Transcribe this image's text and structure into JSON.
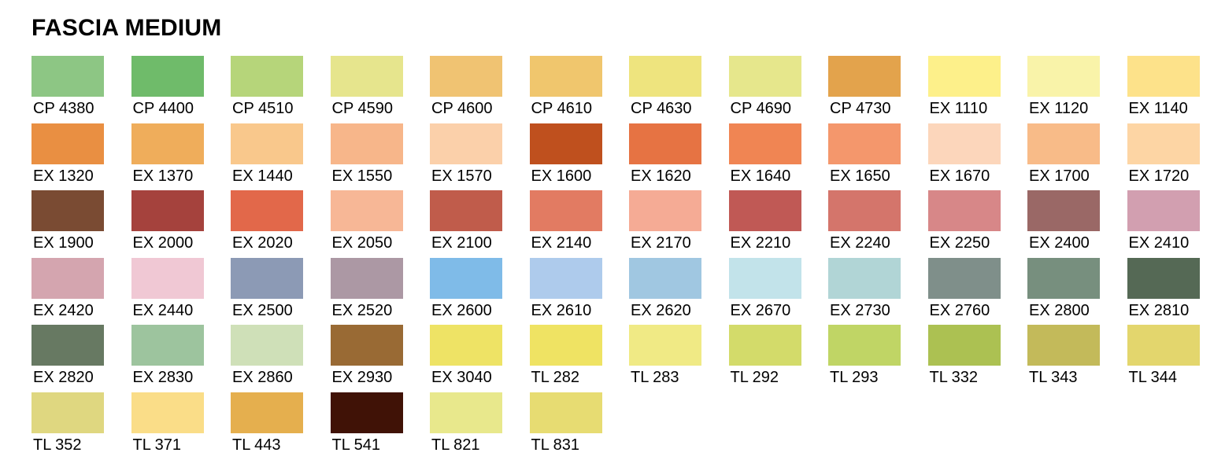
{
  "title": "FASCIA MEDIUM",
  "swatches": [
    {
      "code": "CP 4380",
      "color": "#8dc684"
    },
    {
      "code": "CP 4400",
      "color": "#6fbb6a"
    },
    {
      "code": "CP 4510",
      "color": "#b6d57a"
    },
    {
      "code": "CP 4590",
      "color": "#e6e58d"
    },
    {
      "code": "CP 4600",
      "color": "#f0c372"
    },
    {
      "code": "CP 4610",
      "color": "#f0c66d"
    },
    {
      "code": "CP 4630",
      "color": "#eee47e"
    },
    {
      "code": "CP 4690",
      "color": "#e6e78c"
    },
    {
      "code": "CP 4730",
      "color": "#e3a34c"
    },
    {
      "code": "EX 1110",
      "color": "#fdf08a"
    },
    {
      "code": "EX 1120",
      "color": "#f9f3a9"
    },
    {
      "code": "EX 1140",
      "color": "#fde28a"
    },
    {
      "code": "EX 1320",
      "color": "#e98f42"
    },
    {
      "code": "EX 1370",
      "color": "#efad5b"
    },
    {
      "code": "EX 1440",
      "color": "#f9c88c"
    },
    {
      "code": "EX 1550",
      "color": "#f7b68a"
    },
    {
      "code": "EX 1570",
      "color": "#fbd0aa"
    },
    {
      "code": "EX 1600",
      "color": "#bf501e"
    },
    {
      "code": "EX 1620",
      "color": "#e67343"
    },
    {
      "code": "EX 1640",
      "color": "#f08553"
    },
    {
      "code": "EX 1650",
      "color": "#f4976c"
    },
    {
      "code": "EX 1670",
      "color": "#fcd6bb"
    },
    {
      "code": "EX 1700",
      "color": "#f8bb88"
    },
    {
      "code": "EX 1720",
      "color": "#fdd5a4"
    },
    {
      "code": "EX 1900",
      "color": "#7a4b33"
    },
    {
      "code": "EX 2000",
      "color": "#a5423d"
    },
    {
      "code": "EX 2020",
      "color": "#e2684a"
    },
    {
      "code": "EX 2050",
      "color": "#f7b796"
    },
    {
      "code": "EX 2100",
      "color": "#c05c4b"
    },
    {
      "code": "EX 2140",
      "color": "#e27b62"
    },
    {
      "code": "EX 2170",
      "color": "#f5ab95"
    },
    {
      "code": "EX 2210",
      "color": "#c05955"
    },
    {
      "code": "EX 2240",
      "color": "#d4756b"
    },
    {
      "code": "EX 2250",
      "color": "#d78788"
    },
    {
      "code": "EX 2400",
      "color": "#9a6866"
    },
    {
      "code": "EX 2410",
      "color": "#d29fb0"
    },
    {
      "code": "EX 2420",
      "color": "#d4a5af"
    },
    {
      "code": "EX 2440",
      "color": "#f0c8d4"
    },
    {
      "code": "EX 2500",
      "color": "#8c9ab5"
    },
    {
      "code": "EX 2520",
      "color": "#ac98a4"
    },
    {
      "code": "EX 2600",
      "color": "#7fbbe8"
    },
    {
      "code": "EX 2610",
      "color": "#aecbec"
    },
    {
      "code": "EX 2620",
      "color": "#a0c7e1"
    },
    {
      "code": "EX 2670",
      "color": "#c2e3ea"
    },
    {
      "code": "EX 2730",
      "color": "#b1d5d6"
    },
    {
      "code": "EX 2760",
      "color": "#7f8f8a"
    },
    {
      "code": "EX 2800",
      "color": "#778f7e"
    },
    {
      "code": "EX 2810",
      "color": "#556955"
    },
    {
      "code": "EX 2820",
      "color": "#677962"
    },
    {
      "code": "EX 2830",
      "color": "#9dc49e"
    },
    {
      "code": "EX 2860",
      "color": "#cfe0b8"
    },
    {
      "code": "EX 2930",
      "color": "#996a34"
    },
    {
      "code": "EX 3040",
      "color": "#eee365"
    },
    {
      "code": "TL 282",
      "color": "#efe363"
    },
    {
      "code": "TL 283",
      "color": "#f0ea85"
    },
    {
      "code": "TL 292",
      "color": "#d3db6a"
    },
    {
      "code": "TL 293",
      "color": "#c0d565"
    },
    {
      "code": "TL 332",
      "color": "#acc152"
    },
    {
      "code": "TL 343",
      "color": "#c3ba5a"
    },
    {
      "code": "TL 344",
      "color": "#e3d66d"
    },
    {
      "code": "TL 352",
      "color": "#dfd780"
    },
    {
      "code": "TL 371",
      "color": "#fadd88"
    },
    {
      "code": "TL 443",
      "color": "#e5af4e"
    },
    {
      "code": "TL 541",
      "color": "#401206"
    },
    {
      "code": "TL 821",
      "color": "#e8e88c"
    },
    {
      "code": "TL 831",
      "color": "#e7dc72"
    }
  ]
}
